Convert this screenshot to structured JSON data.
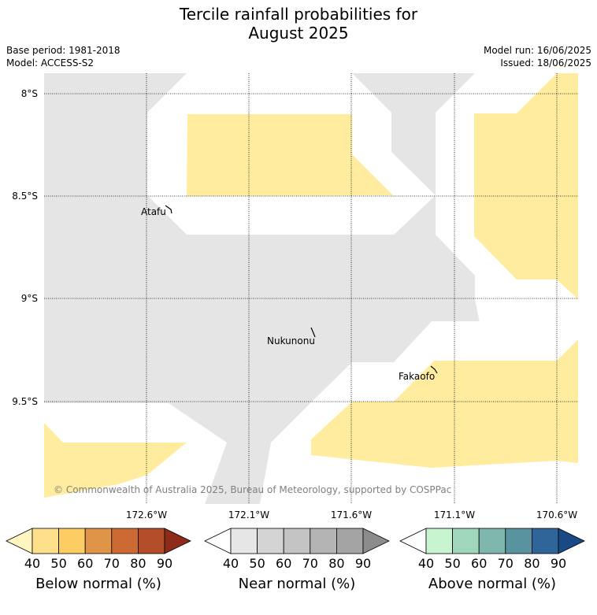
{
  "title": {
    "line1": "Tercile rainfall probabilities for",
    "line2": "August 2025"
  },
  "meta": {
    "base_period": "Base period: 1981-2018",
    "model": "Model: ACCESS-S2",
    "model_run": "Model run: 16/06/2025",
    "issued": "Issued: 18/06/2025"
  },
  "map": {
    "lat_labels": [
      "8°S",
      "8.5°S",
      "9°S",
      "9.5°S"
    ],
    "lon_labels": [
      "172.6°W",
      "172.1°W",
      "171.6°W",
      "171.1°W",
      "170.6°W"
    ],
    "places": [
      "Atafu",
      "Nukunonu",
      "Fakaofo"
    ],
    "copyright": "© Commonwealth of Australia 2025, Bureau of Meteorology, supported by COSPPac"
  },
  "colorbars": [
    {
      "label": "Below normal (%)",
      "ticks": [
        "40",
        "50",
        "60",
        "70",
        "80",
        "90"
      ],
      "colors": [
        "#fff5c0",
        "#fee08b",
        "#fdcc63",
        "#e09448",
        "#cd6a34",
        "#b34d2a",
        "#8e2b1a"
      ]
    },
    {
      "label": "Near normal (%)",
      "ticks": [
        "40",
        "50",
        "60",
        "70",
        "80",
        "90"
      ],
      "colors": [
        "#ffffff",
        "#e6e6e6",
        "#d4d4d4",
        "#c4c4c4",
        "#b4b4b4",
        "#a4a4a4",
        "#8c8c8c"
      ]
    },
    {
      "label": "Above normal (%)",
      "ticks": [
        "40",
        "50",
        "60",
        "70",
        "80",
        "90"
      ],
      "colors": [
        "#ffffff",
        "#c8f5d0",
        "#a0d6bb",
        "#7fb7ae",
        "#5a93a0",
        "#2f6599",
        "#1a4a85"
      ]
    }
  ]
}
